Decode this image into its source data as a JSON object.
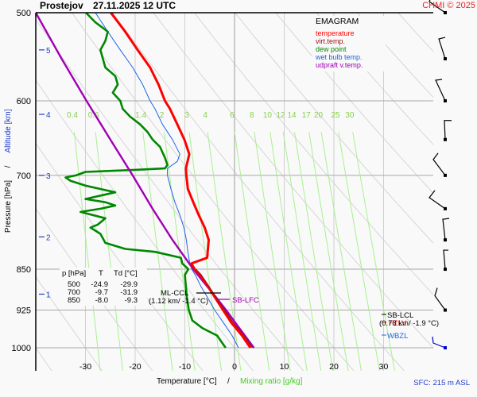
{
  "header": {
    "station": "Prostejov",
    "datetime": "27.11.2025 12 UTC",
    "copyright": "CHMI © 2025",
    "copyright_color": "#ee2222"
  },
  "legend": {
    "title": "EMAGRAM",
    "items": [
      {
        "label": "temperature",
        "color": "#ff0000"
      },
      {
        "label": "virt.temp.",
        "color": "#a01010"
      },
      {
        "label": "dew point",
        "color": "#008800"
      },
      {
        "label": "wet bulb temp.",
        "color": "#1e64e6"
      },
      {
        "label": "udpraft v.temp.",
        "color": "#a000b4"
      }
    ]
  },
  "axes": {
    "ylabel_pressure": "Pressure [hPa]",
    "ylabel_sep": "/",
    "ylabel_altitude": "Altitude [km]",
    "xlabel_temperature": "Temperature [°C]",
    "xlabel_sep": "/",
    "xlabel_mixing": "Mixing ratio [g/kg]",
    "sfc_label": "SFC: 215 m ASL"
  },
  "table": {
    "headers": [
      "p [hPa]",
      "T",
      "Td [°C]"
    ],
    "rows": [
      [
        "500",
        "-24.9",
        "-29.9"
      ],
      [
        "700",
        "-9.7",
        "-31.9"
      ],
      [
        "850",
        "-8.0",
        "-9.3"
      ]
    ]
  },
  "annotations": {
    "ml_ccl": "ML-CCL",
    "ml_ccl_detail": "(1.12 km/ -1.4 °C)",
    "sb_lfc": "SB-LFC",
    "sb_lcl": "SB-LCL",
    "sb_lcl_detail": "(0.78 km/ -1.9 °C)",
    "fzlv": "FZLV",
    "wbzl": "WBZL"
  },
  "chart_data": {
    "type": "line",
    "title": "Prostejov 27.11.2025 12 UTC",
    "subtitle": "EMAGRAM",
    "xlabel": "Temperature [°C] / Mixing ratio [g/kg]",
    "ylabel": "Pressure [hPa] / Altitude [km]",
    "xlim": [
      -40,
      40
    ],
    "ylim": [
      1000,
      500
    ],
    "y_scale": "log",
    "x_ticks": [
      -30,
      -20,
      -10,
      0,
      10,
      20,
      30
    ],
    "y_ticks": [
      500,
      600,
      700,
      850,
      925,
      1000
    ],
    "altitude_ticks": [
      {
        "km": 1,
        "p": 895
      },
      {
        "km": 2,
        "p": 795
      },
      {
        "km": 3,
        "p": 700
      },
      {
        "km": 4,
        "p": 617
      },
      {
        "km": 5,
        "p": 540
      }
    ],
    "mixing_ratio_labels": [
      "0.4",
      "0.6",
      "1.4",
      "2",
      "3",
      "4",
      "6",
      "8",
      "10",
      "12",
      "14",
      "17",
      "20",
      "25",
      "30"
    ],
    "mixing_ratio_label_p": 617,
    "series": [
      {
        "name": "temperature",
        "color": "#ff0000",
        "points": [
          [
            1000,
            3.2
          ],
          [
            975,
            1.5
          ],
          [
            950,
            -0.6
          ],
          [
            925,
            -2.3
          ],
          [
            900,
            -4.0
          ],
          [
            880,
            -5.4
          ],
          [
            860,
            -6.9
          ],
          [
            850,
            -8.0
          ],
          [
            840,
            -8.7
          ],
          [
            830,
            -5.5
          ],
          [
            800,
            -5.2
          ],
          [
            780,
            -6.0
          ],
          [
            760,
            -7.2
          ],
          [
            740,
            -8.3
          ],
          [
            720,
            -9.4
          ],
          [
            700,
            -9.7
          ],
          [
            690,
            -9.8
          ],
          [
            670,
            -9.1
          ],
          [
            650,
            -10.1
          ],
          [
            630,
            -11.5
          ],
          [
            610,
            -13.0
          ],
          [
            600,
            -14.0
          ],
          [
            580,
            -15.3
          ],
          [
            560,
            -17.0
          ],
          [
            540,
            -19.5
          ],
          [
            520,
            -22.0
          ],
          [
            500,
            -24.9
          ]
        ]
      },
      {
        "name": "virt.temp.",
        "color": "#a01010",
        "points": [
          [
            1000,
            3.6
          ],
          [
            975,
            1.9
          ],
          [
            950,
            -0.2
          ],
          [
            925,
            -2.0
          ],
          [
            900,
            -3.8
          ],
          [
            880,
            -5.2
          ],
          [
            860,
            -6.7
          ],
          [
            850,
            -7.8
          ]
        ]
      },
      {
        "name": "dew point",
        "color": "#008800",
        "points": [
          [
            1000,
            -1.8
          ],
          [
            975,
            -3.5
          ],
          [
            960,
            -6.5
          ],
          [
            945,
            -8.5
          ],
          [
            925,
            -9.2
          ],
          [
            900,
            -9.6
          ],
          [
            880,
            -9.8
          ],
          [
            860,
            -10.0
          ],
          [
            850,
            -9.3
          ],
          [
            840,
            -10.5
          ],
          [
            830,
            -10.8
          ],
          [
            820,
            -16
          ],
          [
            815,
            -22
          ],
          [
            805,
            -26
          ],
          [
            790,
            -27
          ],
          [
            780,
            -29
          ],
          [
            775,
            -27.5
          ],
          [
            765,
            -26
          ],
          [
            755,
            -31
          ],
          [
            750,
            -27
          ],
          [
            745,
            -24
          ],
          [
            740,
            -26
          ],
          [
            735,
            -30
          ],
          [
            730,
            -27
          ],
          [
            725,
            -24
          ],
          [
            720,
            -27
          ],
          [
            715,
            -30
          ],
          [
            708,
            -33
          ],
          [
            703,
            -34
          ],
          [
            700,
            -31.9
          ],
          [
            695,
            -30
          ],
          [
            692,
            -20
          ],
          [
            690,
            -14
          ],
          [
            685,
            -13.5
          ],
          [
            675,
            -14.0
          ],
          [
            660,
            -15.0
          ],
          [
            650,
            -16.5
          ],
          [
            640,
            -17.5
          ],
          [
            630,
            -19.0
          ],
          [
            620,
            -21.0
          ],
          [
            610,
            -22.5
          ],
          [
            600,
            -23.0
          ],
          [
            590,
            -24.5
          ],
          [
            580,
            -23.5
          ],
          [
            570,
            -24.0
          ],
          [
            560,
            -26.0
          ],
          [
            550,
            -26.5
          ],
          [
            540,
            -27.0
          ],
          [
            530,
            -26.0
          ],
          [
            520,
            -25.5
          ],
          [
            510,
            -28.0
          ],
          [
            500,
            -29.9
          ]
        ]
      },
      {
        "name": "wet bulb temp.",
        "color": "#1e64e6",
        "points": [
          [
            1000,
            0.8
          ],
          [
            975,
            -0.5
          ],
          [
            950,
            -2.2
          ],
          [
            925,
            -4.0
          ],
          [
            900,
            -5.5
          ],
          [
            880,
            -6.8
          ],
          [
            860,
            -7.9
          ],
          [
            850,
            -8.6
          ],
          [
            840,
            -9.0
          ],
          [
            820,
            -9.4
          ],
          [
            800,
            -9.7
          ],
          [
            780,
            -10.2
          ],
          [
            760,
            -11.0
          ],
          [
            740,
            -12.0
          ],
          [
            720,
            -12.8
          ],
          [
            700,
            -13.5
          ],
          [
            690,
            -13.5
          ],
          [
            680,
            -11.5
          ],
          [
            670,
            -11.0
          ],
          [
            650,
            -12.5
          ],
          [
            630,
            -14.5
          ],
          [
            610,
            -16.0
          ],
          [
            600,
            -17.0
          ],
          [
            580,
            -18.5
          ],
          [
            560,
            -20.5
          ],
          [
            540,
            -23.0
          ],
          [
            520,
            -25.5
          ],
          [
            500,
            -28.0
          ]
        ]
      },
      {
        "name": "udpraft v.temp.",
        "color": "#a000b4",
        "points": [
          [
            1000,
            3.9
          ],
          [
            950,
            0.2
          ],
          [
            925,
            -1.7
          ],
          [
            900,
            -3.8
          ],
          [
            850,
            -8.3
          ],
          [
            800,
            -12.5
          ],
          [
            750,
            -16.5
          ],
          [
            700,
            -20.5
          ],
          [
            650,
            -25.0
          ],
          [
            600,
            -29.8
          ],
          [
            550,
            -34.8
          ],
          [
            500,
            -40.0
          ]
        ]
      }
    ],
    "wind_barbs": [
      {
        "p": 1000,
        "color": "#0000cc"
      },
      {
        "p": 925,
        "color": "#000000"
      },
      {
        "p": 850,
        "color": "#000000"
      },
      {
        "p": 800,
        "color": "#000000"
      },
      {
        "p": 750,
        "color": "#000000"
      },
      {
        "p": 700,
        "color": "#000000"
      },
      {
        "p": 650,
        "color": "#000000"
      },
      {
        "p": 600,
        "color": "#000000"
      },
      {
        "p": 550,
        "color": "#000000"
      },
      {
        "p": 500,
        "color": "#000000"
      }
    ],
    "legend_position": "top-right",
    "grid": true
  }
}
